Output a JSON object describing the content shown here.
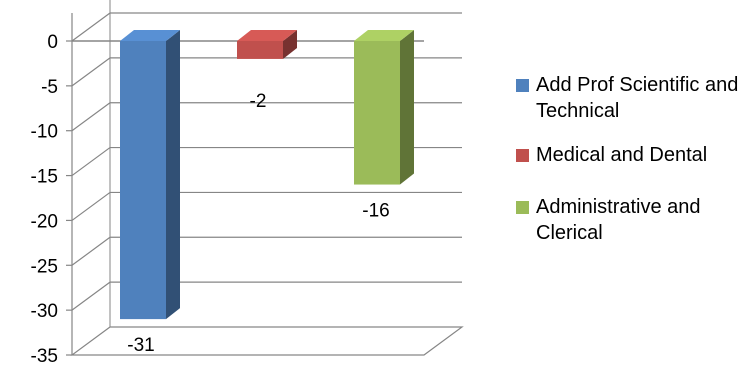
{
  "chart_data": {
    "type": "bar",
    "title": "",
    "xlabel": "",
    "ylabel": "",
    "ylim": [
      -35,
      0
    ],
    "yticks": [
      0,
      -5,
      -10,
      -15,
      -20,
      -25,
      -30,
      -35
    ],
    "grid": true,
    "legend_position": "right",
    "style": "3d-column",
    "series": [
      {
        "name": "Add Prof Scientific and Technical",
        "value": -31,
        "label": "-31",
        "color": "#4F81BD"
      },
      {
        "name": "Medical and Dental",
        "value": -2,
        "label": "-2",
        "color": "#C0504D"
      },
      {
        "name": "Administrative and Clerical",
        "value": -16,
        "label": "-16",
        "color": "#9BBB59"
      }
    ]
  }
}
